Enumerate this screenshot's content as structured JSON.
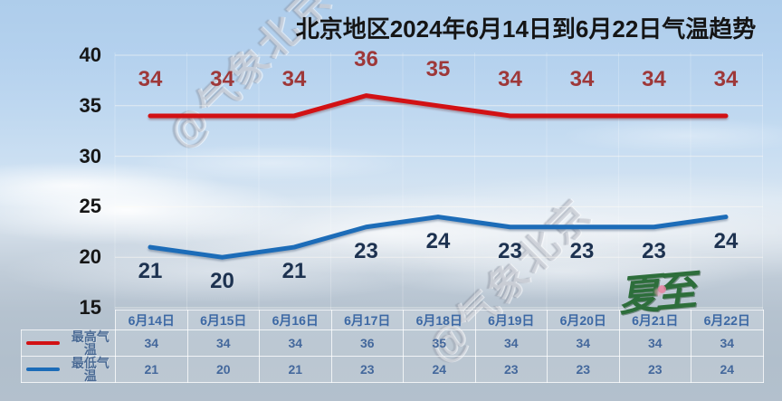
{
  "title": "北京地区2024年6月14日到6月22日气温趋势",
  "watermark_text": "@气象北京",
  "solar_term_stamp": "夏至",
  "colors": {
    "high_line": "#d21114",
    "high_label": "#9e3839",
    "low_line": "#1c6cb8",
    "low_label": "#1d3250",
    "grid_line": "rgba(255,252,244,0.55)",
    "grid_line_vertical": "rgba(255,255,255,0.22)"
  },
  "chart_data": {
    "type": "line",
    "title": "北京地区2024年6月14日到6月22日气温趋势",
    "categories": [
      "6月14日",
      "6月15日",
      "6月16日",
      "6月17日",
      "6月18日",
      "6月19日",
      "6月20日",
      "6月21日",
      "6月22日"
    ],
    "series": [
      {
        "name": "最高气温",
        "values": [
          34,
          34,
          34,
          36,
          35,
          34,
          34,
          34,
          34
        ]
      },
      {
        "name": "最低气温",
        "values": [
          21,
          20,
          21,
          23,
          24,
          23,
          23,
          23,
          24
        ]
      }
    ],
    "yticks": [
      40,
      35,
      30,
      25,
      20,
      15
    ],
    "ylim": [
      15,
      40
    ],
    "grid": true,
    "data_labels": true,
    "legend_position": "bottom-left-table"
  }
}
